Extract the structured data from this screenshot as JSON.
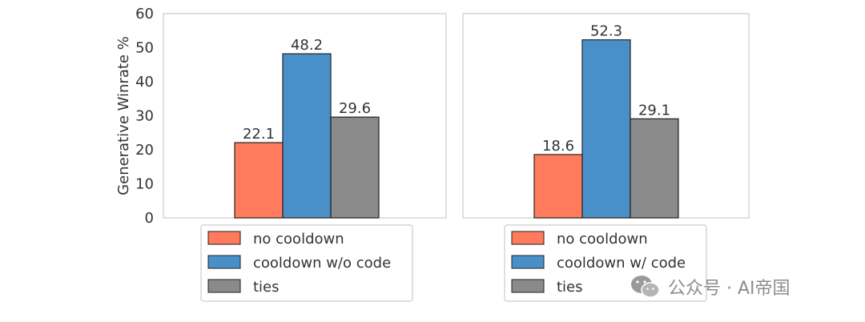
{
  "colors": {
    "no_cooldown": "#ff7b5c",
    "cooldown": "#4a90c8",
    "ties": "#8a8a8a",
    "frame": "#cccccc",
    "edge": "#222222"
  },
  "chart_data": [
    {
      "type": "bar",
      "ylabel": "Generative Winrate %",
      "ylim": [
        0,
        60
      ],
      "yticks": [
        0,
        10,
        20,
        30,
        40,
        50,
        60
      ],
      "series": [
        {
          "name": "no cooldown",
          "value": 22.1,
          "label": "22.1"
        },
        {
          "name": "cooldown w/o code",
          "value": 48.2,
          "label": "48.2"
        },
        {
          "name": "ties",
          "value": 29.6,
          "label": "29.6"
        }
      ],
      "legend_placement": "below"
    },
    {
      "type": "bar",
      "ylim": [
        0,
        60
      ],
      "series": [
        {
          "name": "no cooldown",
          "value": 18.6,
          "label": "18.6"
        },
        {
          "name": "cooldown w/ code",
          "value": 52.3,
          "label": "52.3"
        },
        {
          "name": "ties",
          "value": 29.1,
          "label": "29.1"
        }
      ],
      "legend_placement": "below"
    }
  ],
  "watermark": {
    "text": "公众号 · AI帝国",
    "icon": "wechat-icon"
  }
}
